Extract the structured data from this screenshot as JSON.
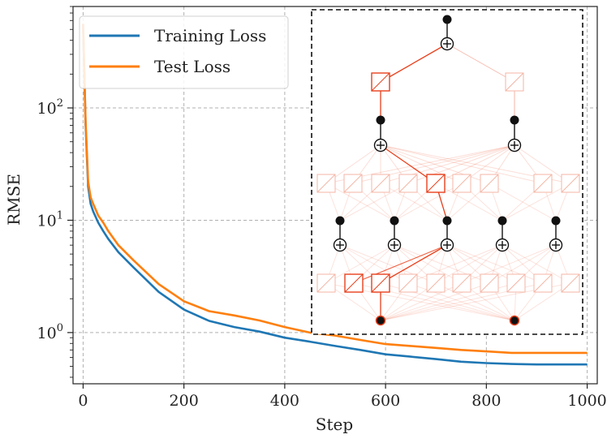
{
  "chart_data": {
    "type": "line",
    "title": "",
    "xlabel": "Step",
    "ylabel": "RMSE",
    "yscale": "log",
    "xlim": [
      -20,
      1020
    ],
    "ylim": [
      0.35,
      800
    ],
    "grid": true,
    "legend_position": "top-left",
    "xticks": [
      0,
      200,
      400,
      600,
      800,
      1000
    ],
    "xtick_labels": [
      "0",
      "200",
      "400",
      "600",
      "800",
      "1000"
    ],
    "yticks": [
      1,
      10,
      100
    ],
    "ytick_labels": [
      {
        "base": "10",
        "exp": "0"
      },
      {
        "base": "10",
        "exp": "1"
      },
      {
        "base": "10",
        "exp": "2"
      }
    ],
    "series": [
      {
        "name": "Training Loss",
        "color": "#1f77b4",
        "x": [
          0,
          5,
          10,
          15,
          20,
          30,
          40,
          50,
          70,
          100,
          150,
          200,
          250,
          300,
          350,
          400,
          450,
          500,
          550,
          600,
          650,
          700,
          750,
          800,
          850,
          900,
          950,
          1000
        ],
        "y": [
          550,
          70,
          20,
          14,
          12,
          9.5,
          8,
          6.8,
          5.2,
          3.8,
          2.3,
          1.6,
          1.27,
          1.12,
          1.02,
          0.9,
          0.83,
          0.76,
          0.7,
          0.64,
          0.61,
          0.58,
          0.55,
          0.535,
          0.525,
          0.52,
          0.52,
          0.52
        ]
      },
      {
        "name": "Test Loss",
        "color": "#ff7f0e",
        "x": [
          0,
          5,
          10,
          15,
          20,
          30,
          40,
          50,
          70,
          100,
          150,
          200,
          250,
          300,
          350,
          400,
          450,
          500,
          550,
          600,
          650,
          700,
          750,
          800,
          850,
          900,
          950,
          1000
        ],
        "y": [
          560,
          75,
          22,
          16,
          14,
          11,
          9.5,
          8,
          6,
          4.4,
          2.7,
          1.9,
          1.55,
          1.42,
          1.28,
          1.12,
          1.0,
          0.94,
          0.86,
          0.79,
          0.76,
          0.73,
          0.7,
          0.68,
          0.66,
          0.66,
          0.66,
          0.66
        ]
      }
    ],
    "inset": {
      "description_name": "network-graph",
      "row_counts": {
        "top_nodes": 1,
        "upper_nodes": 2,
        "middle_nodes": 5,
        "output_nodes": 2
      }
    }
  }
}
